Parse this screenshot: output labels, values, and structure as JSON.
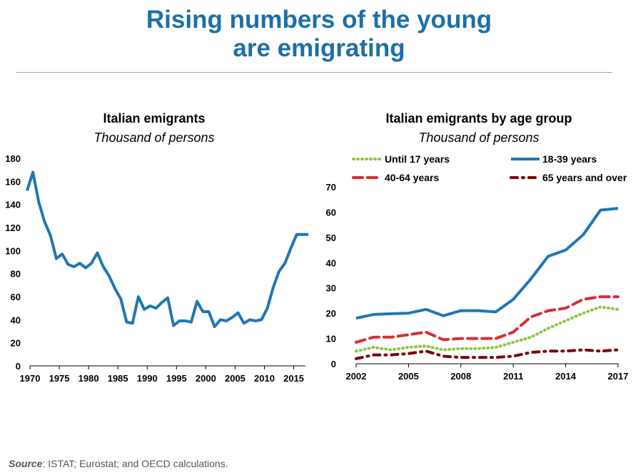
{
  "header": {
    "title_line1": "Rising numbers of the young",
    "title_line2": "are emigrating"
  },
  "source": {
    "label": "Source",
    "text": ": ISTAT; Eurostat; and OECD calculations."
  },
  "colors": {
    "title": "#1d6fa8",
    "primary_line": "#1f77b4",
    "green": "#8dc63f",
    "red": "#d62d35",
    "dark_red": "#7b0000",
    "axis": "#000000"
  },
  "chart_data": [
    {
      "type": "line",
      "title": "Italian emigrants",
      "subtitle": "Thousand of persons",
      "xlabel": "",
      "ylabel": "",
      "ylim": [
        0,
        180
      ],
      "yticks": [
        0,
        20,
        40,
        60,
        80,
        100,
        120,
        140,
        160,
        180
      ],
      "xlim": [
        1970,
        2017
      ],
      "xticks": [
        1970,
        1975,
        1980,
        1985,
        1990,
        1995,
        2000,
        2005,
        2010,
        2015
      ],
      "grid": false,
      "series": [
        {
          "color": "#1f77b4",
          "x": [
            1969.5,
            1970.5,
            1971.5,
            1972.5,
            1973.5,
            1974.5,
            1975.5,
            1976.5,
            1977.5,
            1978.5,
            1979.5,
            1980.5,
            1981.5,
            1982.5,
            1983.5,
            1984.5,
            1985.5,
            1986.5,
            1987.5,
            1988.5,
            1989.5,
            1990.5,
            1991.5,
            1992.5,
            1993.5,
            1994.5,
            1995.5,
            1996.5,
            1997.5,
            1998.5,
            1999.5,
            2000.5,
            2001.5,
            2002.5,
            2003.5,
            2004.5,
            2005.5,
            2006.5,
            2007.5,
            2008.5,
            2009.5,
            2010.5,
            2011.5,
            2012.5,
            2013.5,
            2014.5,
            2015.5,
            2016.5,
            2017.5
          ],
          "values": [
            152,
            168,
            142,
            125,
            113,
            93,
            97,
            88,
            86,
            89,
            85,
            89,
            98,
            86,
            78,
            67,
            58,
            38,
            37,
            60,
            49,
            52,
            50,
            55,
            59,
            35,
            39,
            39,
            38,
            56,
            47,
            47,
            34,
            40,
            39,
            42,
            46,
            37,
            40,
            39,
            40,
            50,
            68,
            82,
            89,
            102,
            114,
            114,
            114
          ]
        }
      ]
    },
    {
      "type": "line",
      "title": "Italian emigrants by age group",
      "subtitle": "Thousand of persons",
      "xlabel": "",
      "ylabel": "",
      "ylim": [
        0,
        70
      ],
      "yticks": [
        0,
        10,
        20,
        30,
        40,
        50,
        60,
        70
      ],
      "xlim": [
        2002,
        2017
      ],
      "xticks": [
        2002,
        2005,
        2008,
        2011,
        2014,
        2017
      ],
      "grid": false,
      "legend": "top",
      "x": [
        2002,
        2003,
        2004,
        2005,
        2006,
        2007,
        2008,
        2009,
        2010,
        2011,
        2012,
        2013,
        2014,
        2015,
        2016,
        2017
      ],
      "series": [
        {
          "name": "Until 17 years",
          "color": "#8dc63f",
          "style": "dotted",
          "values": [
            5,
            6.5,
            5.5,
            6.5,
            7,
            5.5,
            6,
            6,
            6.5,
            8.5,
            10.5,
            14,
            17,
            20,
            22.5,
            21.5
          ]
        },
        {
          "name": "18-39 years",
          "color": "#1f77b4",
          "style": "solid",
          "values": [
            18,
            19.5,
            19.8,
            20,
            21.5,
            19,
            21,
            21,
            20.5,
            25.5,
            33.5,
            42.5,
            45,
            51,
            60.8,
            61.5
          ]
        },
        {
          "name": "40-64 years",
          "color": "#d62d35",
          "style": "dashed",
          "values": [
            8.5,
            10.5,
            10.5,
            11.5,
            12.5,
            9.5,
            10,
            10,
            10,
            12.5,
            18.5,
            21,
            22,
            25.5,
            26.5,
            26.5
          ]
        },
        {
          "name": "65 years and over",
          "color": "#7b0000",
          "style": "dash-dot",
          "values": [
            2,
            3.5,
            3.5,
            4,
            5,
            3,
            2.5,
            2.5,
            2.5,
            3,
            4.5,
            5,
            5,
            5.5,
            5,
            5.5
          ]
        }
      ]
    }
  ]
}
